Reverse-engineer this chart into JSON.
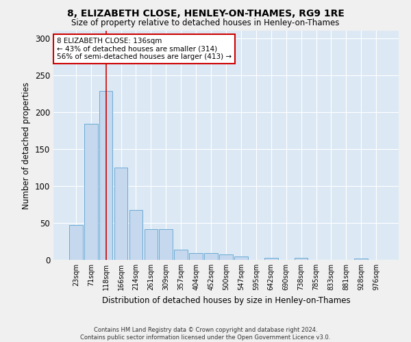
{
  "title": "8, ELIZABETH CLOSE, HENLEY-ON-THAMES, RG9 1RE",
  "subtitle": "Size of property relative to detached houses in Henley-on-Thames",
  "xlabel": "Distribution of detached houses by size in Henley-on-Thames",
  "ylabel": "Number of detached properties",
  "bar_color": "#c5d8ee",
  "bar_edge_color": "#6aaad4",
  "background_color": "#dce9f5",
  "grid_color": "#ffffff",
  "annotation_box_color": "#cc0000",
  "vline_color": "#cc0000",
  "vline_x": 2.0,
  "annotation_text": "8 ELIZABETH CLOSE: 136sqm\n← 43% of detached houses are smaller (314)\n56% of semi-detached houses are larger (413) →",
  "footer_text": "Contains HM Land Registry data © Crown copyright and database right 2024.\nContains public sector information licensed under the Open Government Licence v3.0.",
  "categories": [
    "23sqm",
    "71sqm",
    "118sqm",
    "166sqm",
    "214sqm",
    "261sqm",
    "309sqm",
    "357sqm",
    "404sqm",
    "452sqm",
    "500sqm",
    "547sqm",
    "595sqm",
    "642sqm",
    "690sqm",
    "738sqm",
    "785sqm",
    "833sqm",
    "881sqm",
    "928sqm",
    "976sqm"
  ],
  "values": [
    47,
    184,
    229,
    125,
    68,
    42,
    42,
    14,
    9,
    9,
    7,
    5,
    0,
    3,
    0,
    3,
    0,
    0,
    0,
    2,
    0
  ],
  "ylim": [
    0,
    310
  ],
  "yticks": [
    0,
    50,
    100,
    150,
    200,
    250,
    300
  ]
}
